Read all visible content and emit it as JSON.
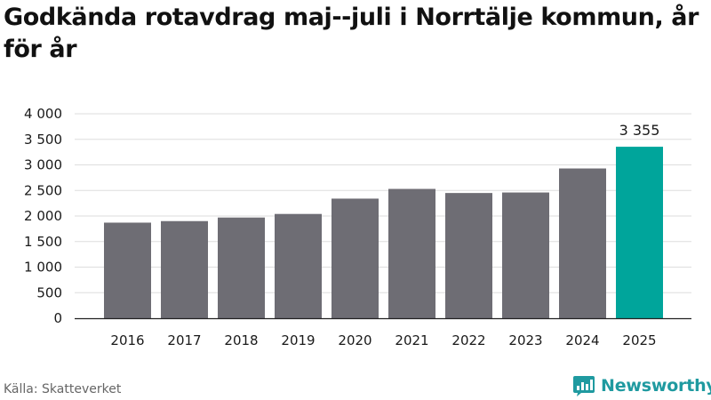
{
  "title": "Godkända rotavdrag maj--juli i Norrtälje kommun, år för år",
  "source": "Källa: Skatteverket",
  "brand": {
    "name": "Newsworthy",
    "icon": "newsworthy-logo-icon",
    "color": "#1f9aa0"
  },
  "chart_data": {
    "type": "bar",
    "categories": [
      "2016",
      "2017",
      "2018",
      "2019",
      "2020",
      "2021",
      "2022",
      "2023",
      "2024",
      "2025"
    ],
    "values": [
      1870,
      1900,
      1970,
      2040,
      2340,
      2530,
      2450,
      2460,
      2930,
      3355
    ],
    "title": "Godkända rotavdrag maj--juli i Norrtälje kommun, år för år",
    "xlabel": "",
    "ylabel": "",
    "ylim": [
      0,
      4000
    ],
    "yticks": [
      0,
      500,
      1000,
      1500,
      2000,
      2500,
      3000,
      3500,
      4000
    ],
    "ytick_labels": [
      "0",
      "500",
      "1 000",
      "1 500",
      "2 000",
      "2 500",
      "3 000",
      "3 500",
      "4 000"
    ],
    "annotations": [
      {
        "category": "2025",
        "label": "3 355"
      }
    ],
    "grid": true,
    "legend": "none",
    "colors": {
      "default_bar": "#6e6d74",
      "highlight_bar": "#00a59b",
      "highlight_category": "2025",
      "grid": "#dddddd",
      "axis": "#222222"
    }
  }
}
